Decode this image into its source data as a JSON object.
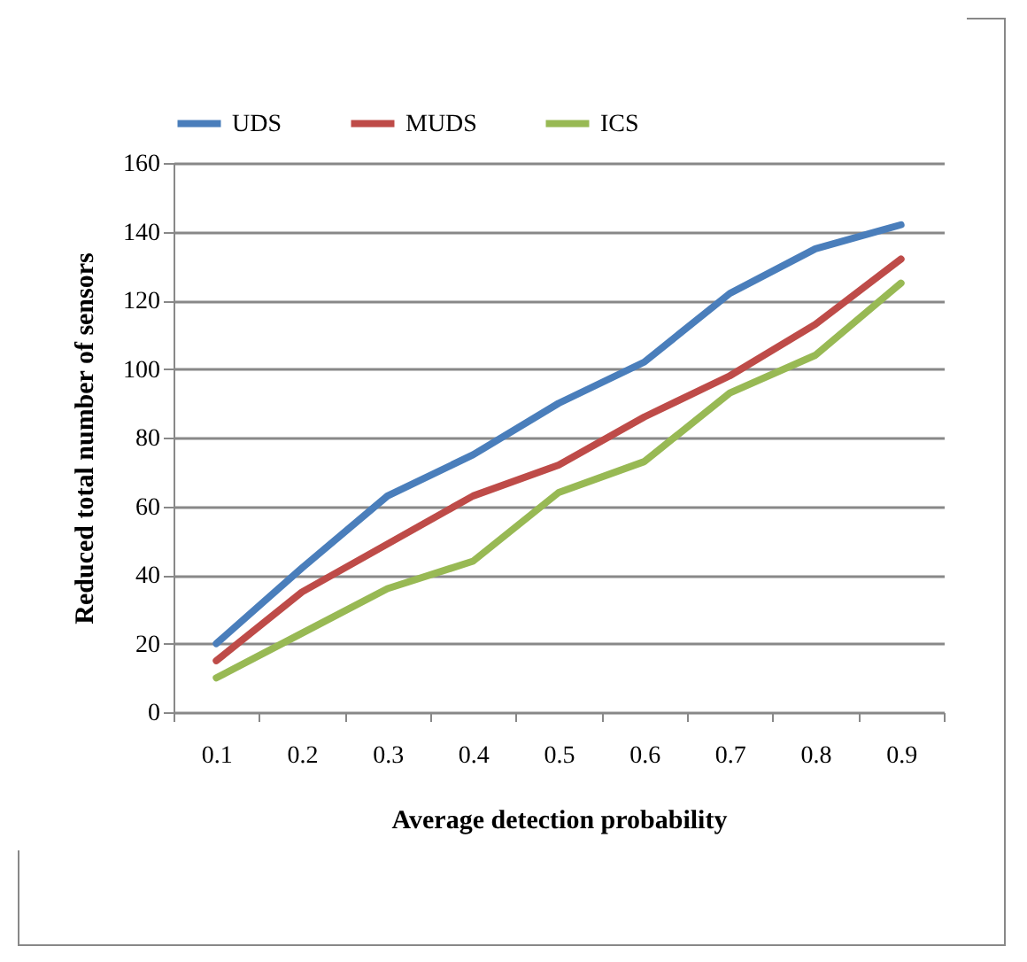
{
  "chart_data": {
    "type": "line",
    "xlabel": "Average detection probability",
    "ylabel": "Reduced total number of sensors",
    "categories": [
      "0.1",
      "0.2",
      "0.3",
      "0.4",
      "0.5",
      "0.6",
      "0.7",
      "0.8",
      "0.9"
    ],
    "series": [
      {
        "name": "UDS",
        "color": "#4a7ebb",
        "values": [
          20,
          42,
          63,
          75,
          90,
          102,
          122,
          135,
          142
        ]
      },
      {
        "name": "MUDS",
        "color": "#be4b48",
        "values": [
          15,
          35,
          49,
          63,
          72,
          86,
          98,
          113,
          132
        ]
      },
      {
        "name": "ICS",
        "color": "#98b954",
        "values": [
          10,
          23,
          36,
          44,
          64,
          73,
          93,
          104,
          125
        ]
      }
    ],
    "ylim": [
      0,
      160
    ],
    "yticks": [
      0,
      20,
      40,
      60,
      80,
      100,
      120,
      140,
      160
    ],
    "grid": "y",
    "legend": "top",
    "marker": "none",
    "line_style": "solid"
  }
}
